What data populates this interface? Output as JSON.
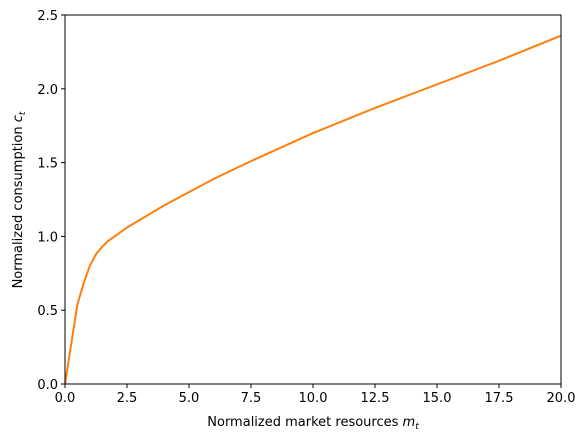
{
  "chart_data": {
    "type": "line",
    "xlabel": "Normalized market resources ",
    "xlabel_var": "m",
    "xlabel_sub": "t",
    "ylabel": "Normalized consumption ",
    "ylabel_var": "c",
    "ylabel_sub": "t",
    "x": [
      0,
      0.5,
      0.75,
      1,
      1.25,
      1.5,
      1.75,
      2,
      2.5,
      3,
      4,
      5,
      6,
      7.5,
      10,
      12.5,
      15,
      17.5,
      20
    ],
    "values": [
      0,
      0.54,
      0.68,
      0.8,
      0.88,
      0.93,
      0.97,
      1.0,
      1.06,
      1.11,
      1.21,
      1.3,
      1.39,
      1.51,
      1.7,
      1.87,
      2.03,
      2.19,
      2.36
    ],
    "color": "#ff7f0e",
    "xlim": [
      0,
      20
    ],
    "xticks": [
      {
        "value": 0,
        "label": "0.0"
      },
      {
        "value": 2.5,
        "label": "2.5"
      },
      {
        "value": 5,
        "label": "5.0"
      },
      {
        "value": 7.5,
        "label": "7.5"
      },
      {
        "value": 10,
        "label": "10.0"
      },
      {
        "value": 12.5,
        "label": "12.5"
      },
      {
        "value": 15,
        "label": "15.0"
      },
      {
        "value": 17.5,
        "label": "17.5"
      },
      {
        "value": 20,
        "label": "20.0"
      }
    ],
    "ylim": [
      0,
      2.5
    ],
    "yticks": [
      {
        "value": 0,
        "label": "0.0"
      },
      {
        "value": 0.5,
        "label": "0.5"
      },
      {
        "value": 1,
        "label": "1.0"
      },
      {
        "value": 1.5,
        "label": "1.5"
      },
      {
        "value": 2,
        "label": "2.0"
      },
      {
        "value": 2.5,
        "label": "2.5"
      }
    ],
    "grid": false
  }
}
